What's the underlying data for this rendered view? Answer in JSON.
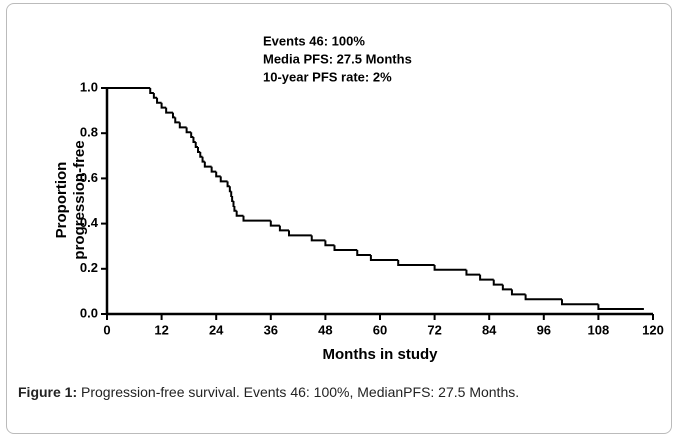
{
  "chart_data": {
    "type": "line",
    "drawstyle": "steps-post",
    "color": "#000000",
    "annotations": [
      "Events 46: 100%",
      "Media PFS: 27.5 Months",
      "10-year PFS rate: 2%"
    ],
    "xlabel": "Months in study",
    "ylabel": [
      "Proportion",
      "progression-free"
    ],
    "x": [
      0,
      9.5,
      10.3,
      11,
      12,
      13,
      14.5,
      15,
      16,
      17.5,
      18.5,
      19,
      19.5,
      20,
      20.5,
      21,
      21.5,
      23,
      24,
      25,
      26.5,
      27,
      27.3,
      27.5,
      27.8,
      28,
      28.5,
      30,
      36,
      38,
      40,
      45,
      48,
      50,
      55,
      58,
      64,
      72,
      79,
      82,
      85,
      87,
      89,
      92,
      100,
      108,
      118
    ],
    "values": [
      1.0,
      0.978,
      0.957,
      0.935,
      0.913,
      0.891,
      0.87,
      0.848,
      0.826,
      0.804,
      0.783,
      0.761,
      0.739,
      0.717,
      0.696,
      0.674,
      0.652,
      0.63,
      0.609,
      0.587,
      0.565,
      0.543,
      0.522,
      0.5,
      0.478,
      0.457,
      0.435,
      0.413,
      0.391,
      0.37,
      0.348,
      0.326,
      0.304,
      0.283,
      0.261,
      0.239,
      0.217,
      0.196,
      0.174,
      0.152,
      0.13,
      0.109,
      0.087,
      0.065,
      0.043,
      0.022,
      0.022
    ],
    "xlim": [
      0,
      120
    ],
    "xticks": [
      0,
      12,
      24,
      36,
      48,
      60,
      72,
      84,
      96,
      108,
      120
    ],
    "ylim": [
      0,
      1
    ],
    "yticks": [
      {
        "value": 0,
        "label": "0.0"
      },
      0.2,
      0.4,
      0.6,
      0.8,
      {
        "value": 1,
        "label": "1.0"
      }
    ]
  },
  "figure_caption": {
    "label": "Figure 1:",
    "text": "Progression-free survival. Events 46: 100%, MedianPFS: 27.5 Months."
  }
}
